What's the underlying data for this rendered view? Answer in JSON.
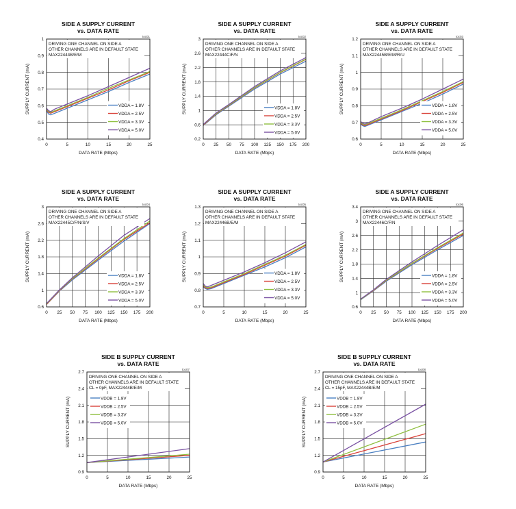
{
  "chart_data": [
    {
      "type": "line",
      "title": "SIDE A SUPPLY CURRENT",
      "subtitle": "vs. DATA RATE",
      "code": "toc01",
      "xlabel": "DATA RATE (Mbps)",
      "ylabel": "SUPPLY CURRENT (mA)",
      "xlim": [
        0,
        25
      ],
      "ylim": [
        0.4,
        1.0
      ],
      "xticks": [
        0,
        5,
        10,
        15,
        20,
        25
      ],
      "yticks": [
        0.4,
        0.5,
        0.6,
        0.7,
        0.8,
        0.9,
        1.0
      ],
      "ytick_labels": [
        "0.4",
        "0.5",
        "0.6",
        "0.7",
        "0.8",
        "0.9",
        "1"
      ],
      "grid": true,
      "annotation": [
        "DRIVING ONE CHANNEL ON SIDE A",
        "OTHER CHANNELS ARE IN DEFAULT STATE",
        "MAX22444B/E/M"
      ],
      "legend_position": "right",
      "series": [
        {
          "name": "VDDA = 1.8V",
          "color": "#4a7fc1",
          "x": [
            0,
            0.5,
            1,
            2,
            5,
            10,
            15,
            20,
            25
          ],
          "y": [
            0.57,
            0.55,
            0.545,
            0.555,
            0.585,
            0.635,
            0.685,
            0.74,
            0.79
          ]
        },
        {
          "name": "VDDA = 2.5V",
          "color": "#d9433a",
          "x": [
            0,
            0.5,
            1,
            2,
            5,
            10,
            15,
            20,
            25
          ],
          "y": [
            0.575,
            0.56,
            0.555,
            0.565,
            0.595,
            0.645,
            0.695,
            0.75,
            0.8
          ]
        },
        {
          "name": "VDDA = 3.3V",
          "color": "#8fbf3f",
          "x": [
            0,
            0.5,
            1,
            2,
            5,
            10,
            15,
            20,
            25
          ],
          "y": [
            0.58,
            0.565,
            0.56,
            0.57,
            0.6,
            0.65,
            0.705,
            0.755,
            0.805
          ]
        },
        {
          "name": "VDDA = 5.0V",
          "color": "#7a52a3",
          "x": [
            0,
            0.5,
            1,
            2,
            5,
            10,
            15,
            20,
            25
          ],
          "y": [
            0.585,
            0.57,
            0.565,
            0.58,
            0.61,
            0.66,
            0.715,
            0.77,
            0.825
          ]
        }
      ]
    },
    {
      "type": "line",
      "title": "SIDE A SUPPLY CURRENT",
      "subtitle": "vs. DATA RATE",
      "code": "toc02",
      "xlabel": "DATA RATE (Mbps)",
      "ylabel": "SUPPLY CURRENT (mA)",
      "xlim": [
        0,
        200
      ],
      "ylim": [
        0.2,
        3.0
      ],
      "xticks": [
        0,
        25,
        50,
        75,
        100,
        125,
        150,
        175,
        200
      ],
      "yticks": [
        0.2,
        0.6,
        1.0,
        1.4,
        1.8,
        2.2,
        2.6,
        3.0
      ],
      "ytick_labels": [
        "0.2",
        "0.6",
        "1",
        "1.4",
        "1.8",
        "2.2",
        "2.6",
        "3"
      ],
      "grid": true,
      "annotation": [
        "DRIVING ONE CHANNEL ON SIDE A",
        "OTHER CHANNELS ARE IN DEFAULT STATE",
        "MAX22444C/F/N"
      ],
      "legend_position": "bottom-right",
      "series": [
        {
          "name": "VDDA = 1.8V",
          "color": "#4a7fc1",
          "x": [
            0,
            25,
            50,
            100,
            150,
            200
          ],
          "y": [
            0.58,
            0.88,
            1.12,
            1.6,
            2.02,
            2.38
          ]
        },
        {
          "name": "VDDA = 2.5V",
          "color": "#d9433a",
          "x": [
            0,
            25,
            50,
            100,
            150,
            200
          ],
          "y": [
            0.59,
            0.9,
            1.14,
            1.63,
            2.06,
            2.43
          ]
        },
        {
          "name": "VDDA = 3.3V",
          "color": "#8fbf3f",
          "x": [
            0,
            25,
            50,
            100,
            150,
            200
          ],
          "y": [
            0.6,
            0.91,
            1.15,
            1.64,
            2.07,
            2.44
          ]
        },
        {
          "name": "VDDA = 5.0V",
          "color": "#7a52a3",
          "x": [
            0,
            25,
            50,
            100,
            150,
            200
          ],
          "y": [
            0.61,
            0.93,
            1.17,
            1.67,
            2.11,
            2.48
          ]
        }
      ]
    },
    {
      "type": "line",
      "title": "SIDE A SUPPLY CURRENT",
      "subtitle": "vs. DATA RATE",
      "code": "toc03",
      "xlabel": "DATA RATE (Mbps)",
      "ylabel": "SUPPLY CURRENT (mA)",
      "xlim": [
        0,
        25
      ],
      "ylim": [
        0.6,
        1.2
      ],
      "xticks": [
        0,
        5,
        10,
        15,
        20,
        25
      ],
      "yticks": [
        0.6,
        0.7,
        0.8,
        0.9,
        1.0,
        1.1,
        1.2
      ],
      "ytick_labels": [
        "0.6",
        "0.7",
        "0.8",
        "0.9",
        "1",
        "1.1",
        "1.2"
      ],
      "grid": true,
      "annotation": [
        "DRIVING ONE CHANNEL ON SIDE A",
        "OTHER CHANNELS ARE IN DEFAULT STATE",
        "MAX22445B/E/M/R/U"
      ],
      "legend_position": "right",
      "series": [
        {
          "name": "VDDA = 1.8V",
          "color": "#4a7fc1",
          "x": [
            0,
            0.5,
            1,
            2,
            5,
            10,
            15,
            20,
            25
          ],
          "y": [
            0.69,
            0.68,
            0.675,
            0.685,
            0.715,
            0.765,
            0.815,
            0.87,
            0.93
          ]
        },
        {
          "name": "VDDA = 2.5V",
          "color": "#d9433a",
          "x": [
            0,
            0.5,
            1,
            2,
            5,
            10,
            15,
            20,
            25
          ],
          "y": [
            0.695,
            0.685,
            0.68,
            0.69,
            0.72,
            0.77,
            0.825,
            0.88,
            0.94
          ]
        },
        {
          "name": "VDDA = 3.3V",
          "color": "#8fbf3f",
          "x": [
            0,
            0.5,
            1,
            2,
            5,
            10,
            15,
            20,
            25
          ],
          "y": [
            0.7,
            0.69,
            0.685,
            0.695,
            0.725,
            0.775,
            0.83,
            0.885,
            0.945
          ]
        },
        {
          "name": "VDDA = 5.0V",
          "color": "#7a52a3",
          "x": [
            0,
            0.5,
            1,
            2,
            5,
            10,
            15,
            20,
            25
          ],
          "y": [
            0.705,
            0.695,
            0.69,
            0.7,
            0.735,
            0.785,
            0.84,
            0.9,
            0.96
          ]
        }
      ]
    },
    {
      "type": "line",
      "title": "SIDE A SUPPLY CURRENT",
      "subtitle": "vs. DATA RATE",
      "code": "toc04",
      "xlabel": "DATA RATE (Mbps)",
      "ylabel": "SUPPLY CURRENT (mA)",
      "xlim": [
        0,
        200
      ],
      "ylim": [
        0.6,
        3.0
      ],
      "xticks": [
        0,
        25,
        50,
        75,
        100,
        125,
        150,
        175,
        200
      ],
      "yticks": [
        0.6,
        1.0,
        1.4,
        1.8,
        2.2,
        2.6,
        3.0
      ],
      "ytick_labels": [
        "0.6",
        "1",
        "1.4",
        "1.8",
        "2.2",
        "2.6",
        "3"
      ],
      "grid": true,
      "annotation": [
        "DRIVING ONE CHANNEL ON SIDE A",
        "OTHER CHANNELS ARE IN DEFAULT STATE",
        "MAX22445C/F/N/S/V"
      ],
      "legend_position": "bottom-right",
      "series": [
        {
          "name": "VDDA = 1.8V",
          "color": "#4a7fc1",
          "x": [
            0,
            25,
            50,
            100,
            150,
            200
          ],
          "y": [
            0.66,
            0.98,
            1.25,
            1.72,
            2.18,
            2.6
          ]
        },
        {
          "name": "VDDA = 2.5V",
          "color": "#d9433a",
          "x": [
            0,
            25,
            50,
            100,
            150,
            200
          ],
          "y": [
            0.66,
            0.99,
            1.27,
            1.75,
            2.22,
            2.62
          ]
        },
        {
          "name": "VDDA = 3.3V",
          "color": "#8fbf3f",
          "x": [
            0,
            25,
            50,
            100,
            150,
            200
          ],
          "y": [
            0.67,
            1.0,
            1.28,
            1.77,
            2.24,
            2.66
          ]
        },
        {
          "name": "VDDA = 5.0V",
          "color": "#7a52a3",
          "x": [
            0,
            25,
            50,
            100,
            150,
            200
          ],
          "y": [
            0.68,
            1.01,
            1.3,
            1.82,
            2.32,
            2.72
          ]
        }
      ]
    },
    {
      "type": "line",
      "title": "SIDE A SUPPLY CURRENT",
      "subtitle": "vs. DATA RATE",
      "code": "toc05",
      "xlabel": "DATA RATE (Mbps)",
      "ylabel": "SUPPLY CURRENT (mA)",
      "xlim": [
        0,
        25
      ],
      "ylim": [
        0.7,
        1.3
      ],
      "xticks": [
        0,
        5,
        10,
        15,
        20,
        25
      ],
      "yticks": [
        0.7,
        0.8,
        0.9,
        1.0,
        1.1,
        1.2,
        1.3
      ],
      "ytick_labels": [
        "0.7",
        "0.8",
        "0.9",
        "1",
        "1.1",
        "1.2",
        "1.3"
      ],
      "grid": true,
      "annotation": [
        "DRIVING ONE CHANNEL ON SIDE A",
        "OTHER CHANNELS ARE IN DEFAULT STATE",
        "MAX22446B/E/M"
      ],
      "legend_position": "right",
      "series": [
        {
          "name": "VDDA = 1.8V",
          "color": "#4a7fc1",
          "x": [
            0,
            0.5,
            1,
            2,
            5,
            10,
            15,
            20,
            25
          ],
          "y": [
            0.82,
            0.81,
            0.805,
            0.81,
            0.84,
            0.89,
            0.94,
            0.995,
            1.06
          ]
        },
        {
          "name": "VDDA = 2.5V",
          "color": "#d9433a",
          "x": [
            0,
            0.5,
            1,
            2,
            5,
            10,
            15,
            20,
            25
          ],
          "y": [
            0.825,
            0.815,
            0.81,
            0.815,
            0.845,
            0.895,
            0.95,
            1.005,
            1.07
          ]
        },
        {
          "name": "VDDA = 3.3V",
          "color": "#8fbf3f",
          "x": [
            0,
            0.5,
            1,
            2,
            5,
            10,
            15,
            20,
            25
          ],
          "y": [
            0.83,
            0.82,
            0.815,
            0.82,
            0.85,
            0.9,
            0.955,
            1.01,
            1.075
          ]
        },
        {
          "name": "VDDA = 5.0V",
          "color": "#7a52a3",
          "x": [
            0,
            0.5,
            1,
            2,
            5,
            10,
            15,
            20,
            25
          ],
          "y": [
            0.84,
            0.825,
            0.82,
            0.83,
            0.86,
            0.91,
            0.965,
            1.025,
            1.09
          ]
        }
      ]
    },
    {
      "type": "line",
      "title": "SIDE A SUPPLY CURRENT",
      "subtitle": "vs. DATA RATE",
      "code": "toc06",
      "xlabel": "DATA RATE (Mbps)",
      "ylabel": "SUPPLY CURRENT (mA)",
      "xlim": [
        0,
        200
      ],
      "ylim": [
        0.6,
        3.4
      ],
      "xticks": [
        0,
        25,
        50,
        75,
        100,
        125,
        150,
        175,
        200
      ],
      "yticks": [
        0.6,
        1.0,
        1.4,
        1.8,
        2.2,
        2.6,
        3.0,
        3.4
      ],
      "ytick_labels": [
        "0.6",
        "1",
        "1.4",
        "1.8",
        "2.2",
        "2.6",
        "3",
        "3.4"
      ],
      "grid": true,
      "annotation": [
        "DRIVING ONE CHANNEL ON SIDE A",
        "OTHER CHANNELS ARE IN DEFAULT STATE",
        "MAX22446C/F/N"
      ],
      "legend_position": "bottom-right",
      "series": [
        {
          "name": "VDDA = 1.8V",
          "color": "#4a7fc1",
          "x": [
            0,
            25,
            50,
            100,
            150,
            200
          ],
          "y": [
            0.8,
            1.05,
            1.32,
            1.78,
            2.2,
            2.6
          ]
        },
        {
          "name": "VDDA = 2.5V",
          "color": "#d9433a",
          "x": [
            0,
            25,
            50,
            100,
            150,
            200
          ],
          "y": [
            0.81,
            1.06,
            1.34,
            1.81,
            2.24,
            2.64
          ]
        },
        {
          "name": "VDDA = 3.3V",
          "color": "#8fbf3f",
          "x": [
            0,
            25,
            50,
            100,
            150,
            200
          ],
          "y": [
            0.81,
            1.07,
            1.35,
            1.82,
            2.26,
            2.67
          ]
        },
        {
          "name": "VDDA = 5.0V",
          "color": "#7a52a3",
          "x": [
            0,
            25,
            50,
            100,
            150,
            200
          ],
          "y": [
            0.82,
            1.08,
            1.37,
            1.86,
            2.32,
            2.76
          ]
        }
      ]
    },
    {
      "type": "line",
      "title": "SIDE B SUPPLY CURRENT",
      "subtitle": "vs. DATA RATE",
      "code": "toc07",
      "xlabel": "DATA RATE (Mbps)",
      "ylabel": "SUPPLY CURRENT (mA)",
      "xlim": [
        0,
        25
      ],
      "ylim": [
        0.9,
        2.7
      ],
      "xticks": [
        0,
        5,
        10,
        15,
        20,
        25
      ],
      "yticks": [
        0.9,
        1.2,
        1.5,
        1.8,
        2.1,
        2.4,
        2.7
      ],
      "ytick_labels": [
        "0.9",
        "1.2",
        "1.5",
        "1.8",
        "2.1",
        "2.4",
        "2.7"
      ],
      "grid": true,
      "annotation": [
        "DRIVING ONE CHANNEL ON SIDE A",
        "OTHER CHANNELS ARE IN DEFAULT STATE",
        "CL = 0pF, MAX22444B/E/M"
      ],
      "legend_position": "top-left",
      "series": [
        {
          "name": "VDDB = 1.8V",
          "color": "#4a7fc1",
          "x": [
            0,
            25
          ],
          "y": [
            1.07,
            1.17
          ]
        },
        {
          "name": "VDDB = 2.5V",
          "color": "#d9433a",
          "x": [
            0,
            25
          ],
          "y": [
            1.07,
            1.2
          ]
        },
        {
          "name": "VDDB = 3.3V",
          "color": "#8fbf3f",
          "x": [
            0,
            25
          ],
          "y": [
            1.07,
            1.22
          ]
        },
        {
          "name": "VDDB = 5.0V",
          "color": "#7a52a3",
          "x": [
            0,
            25
          ],
          "y": [
            1.07,
            1.32
          ]
        }
      ]
    },
    {
      "type": "line",
      "title": "SIDE B SUPPLY CURRENT",
      "subtitle": "vs. DATA RATE",
      "code": "toc08",
      "xlabel": "DATA RATE (Mbps)",
      "ylabel": "SUPPLY CURRENT (mA)",
      "xlim": [
        0,
        25
      ],
      "ylim": [
        0.9,
        2.7
      ],
      "xticks": [
        0,
        5,
        10,
        15,
        20,
        25
      ],
      "yticks": [
        0.9,
        1.2,
        1.5,
        1.8,
        2.1,
        2.4,
        2.7
      ],
      "ytick_labels": [
        "0.9",
        "1.2",
        "1.5",
        "1.8",
        "2.1",
        "2.4",
        "2.7"
      ],
      "grid": true,
      "annotation": [
        "DRIVING ONE CHANNEL ON SIDE A",
        "OTHER CHANNELS ARE IN DEFAULT STATE",
        "CL = 15pF, MAX22444B/E/M"
      ],
      "legend_position": "top-left",
      "series": [
        {
          "name": "VDDB = 1.8V",
          "color": "#4a7fc1",
          "x": [
            0,
            25
          ],
          "y": [
            1.08,
            1.44
          ]
        },
        {
          "name": "VDDB = 2.5V",
          "color": "#d9433a",
          "x": [
            0,
            25
          ],
          "y": [
            1.08,
            1.59
          ]
        },
        {
          "name": "VDDB = 3.3V",
          "color": "#8fbf3f",
          "x": [
            0,
            25
          ],
          "y": [
            1.08,
            1.76
          ]
        },
        {
          "name": "VDDB = 5.0V",
          "color": "#7a52a3",
          "x": [
            0,
            25
          ],
          "y": [
            1.08,
            2.12
          ]
        }
      ]
    }
  ]
}
